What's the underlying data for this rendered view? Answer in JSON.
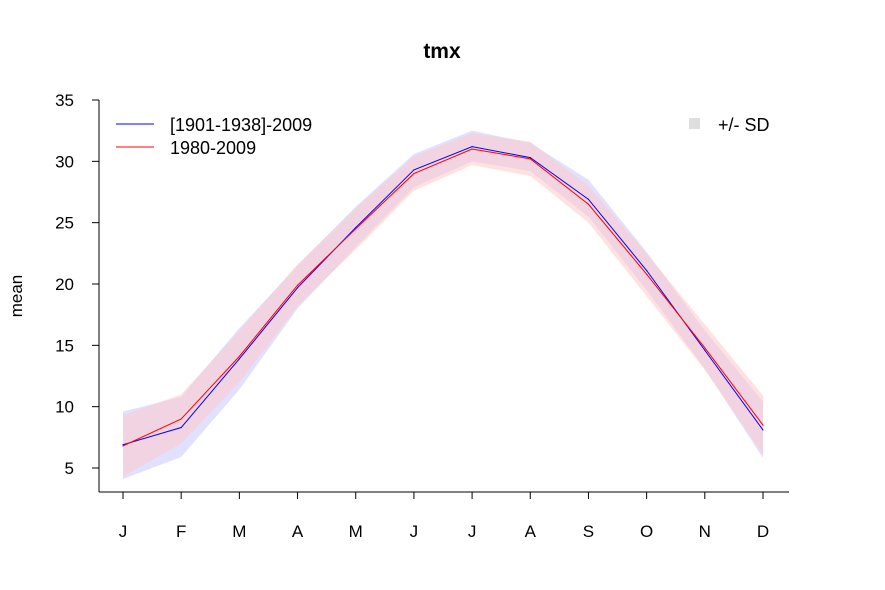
{
  "chart_data": {
    "type": "line",
    "title": "tmx",
    "xlabel": "",
    "ylabel": "mean",
    "categories": [
      "J",
      "F",
      "M",
      "A",
      "M",
      "J",
      "J",
      "A",
      "S",
      "O",
      "N",
      "D"
    ],
    "ylim": [
      3,
      35
    ],
    "yticks": [
      5,
      10,
      15,
      20,
      25,
      30,
      35
    ],
    "grid": false,
    "series": [
      {
        "name": "[1901-1938]-2009",
        "color": "#0000ff",
        "band_color": "#c8c8ff",
        "values": [
          6.9,
          8.3,
          13.9,
          19.7,
          24.6,
          29.3,
          31.2,
          30.3,
          26.9,
          21.1,
          14.6,
          8.1
        ],
        "sd_lower": [
          4.1,
          5.9,
          11.4,
          18.0,
          23.0,
          27.9,
          30.0,
          29.2,
          25.5,
          19.5,
          13.1,
          5.8
        ],
        "sd_upper": [
          9.6,
          10.8,
          16.4,
          21.5,
          26.3,
          30.6,
          32.5,
          31.5,
          28.5,
          22.6,
          16.2,
          10.4
        ]
      },
      {
        "name": "1980-2009",
        "color": "#ff0000",
        "band_color": "#ffc8c8",
        "values": [
          6.8,
          9.0,
          14.1,
          19.9,
          24.5,
          29.0,
          31.0,
          30.2,
          26.5,
          20.8,
          14.8,
          8.5
        ],
        "sd_lower": [
          4.3,
          7.0,
          12.0,
          18.2,
          22.8,
          27.6,
          29.7,
          28.8,
          25.0,
          19.0,
          13.0,
          6.1
        ],
        "sd_upper": [
          9.3,
          11.0,
          16.2,
          21.6,
          26.2,
          30.4,
          32.3,
          31.6,
          28.0,
          22.5,
          16.7,
          10.9
        ]
      }
    ],
    "sd_legend_label": "+/- SD",
    "legend_placement": "top-left",
    "sd_legend_placement": "top-right"
  }
}
